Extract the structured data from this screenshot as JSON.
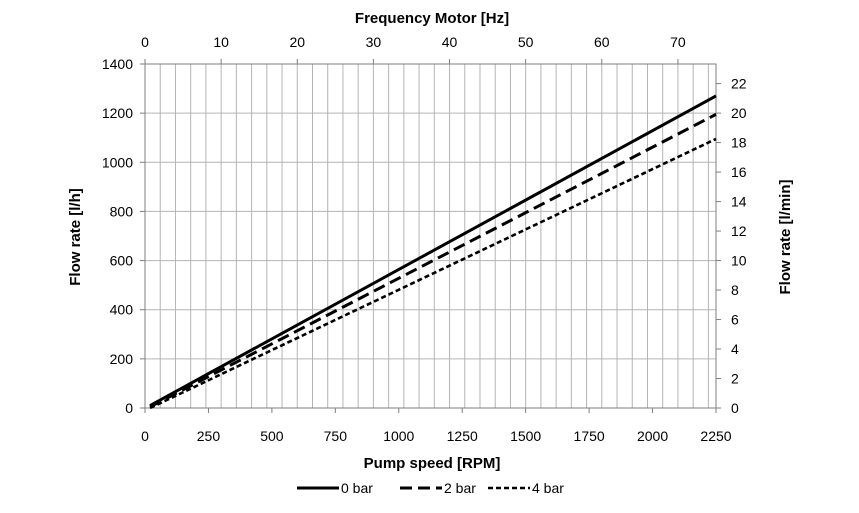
{
  "chart_data": {
    "type": "line",
    "title": "",
    "xlabel": "Pump speed [RPM]",
    "ylabel": "Flow rate  [l/h]",
    "x2label": "Frequency Motor [Hz]",
    "y2label": "Flow rate  [l/min]",
    "xlim": [
      0,
      2250
    ],
    "ylim": [
      0,
      1400
    ],
    "x2lim": [
      0,
      75
    ],
    "y2lim": [
      0,
      23.33
    ],
    "x_ticks": [
      0,
      250,
      500,
      750,
      1000,
      1250,
      1500,
      1750,
      2000,
      2250
    ],
    "y_ticks": [
      0,
      200,
      400,
      600,
      800,
      1000,
      1200,
      1400
    ],
    "x2_ticks": [
      0,
      10,
      20,
      30,
      40,
      50,
      60,
      70
    ],
    "y2_ticks": [
      0,
      2,
      4,
      6,
      8,
      10,
      12,
      14,
      16,
      18,
      20,
      22
    ],
    "grid": true,
    "legend_position": "bottom-center",
    "series": [
      {
        "name": "0 bar",
        "style": "solid",
        "x": [
          20,
          2250
        ],
        "y": [
          10,
          1270
        ]
      },
      {
        "name": "2 bar",
        "style": "dashed",
        "x": [
          20,
          2250
        ],
        "y": [
          5,
          1195
        ]
      },
      {
        "name": "4 bar",
        "style": "dotted",
        "x": [
          20,
          2250
        ],
        "y": [
          0,
          1095
        ]
      }
    ],
    "colors": {
      "line": "#000000",
      "grid": "#b4b4b4",
      "frame": "#7f7f7f"
    }
  }
}
